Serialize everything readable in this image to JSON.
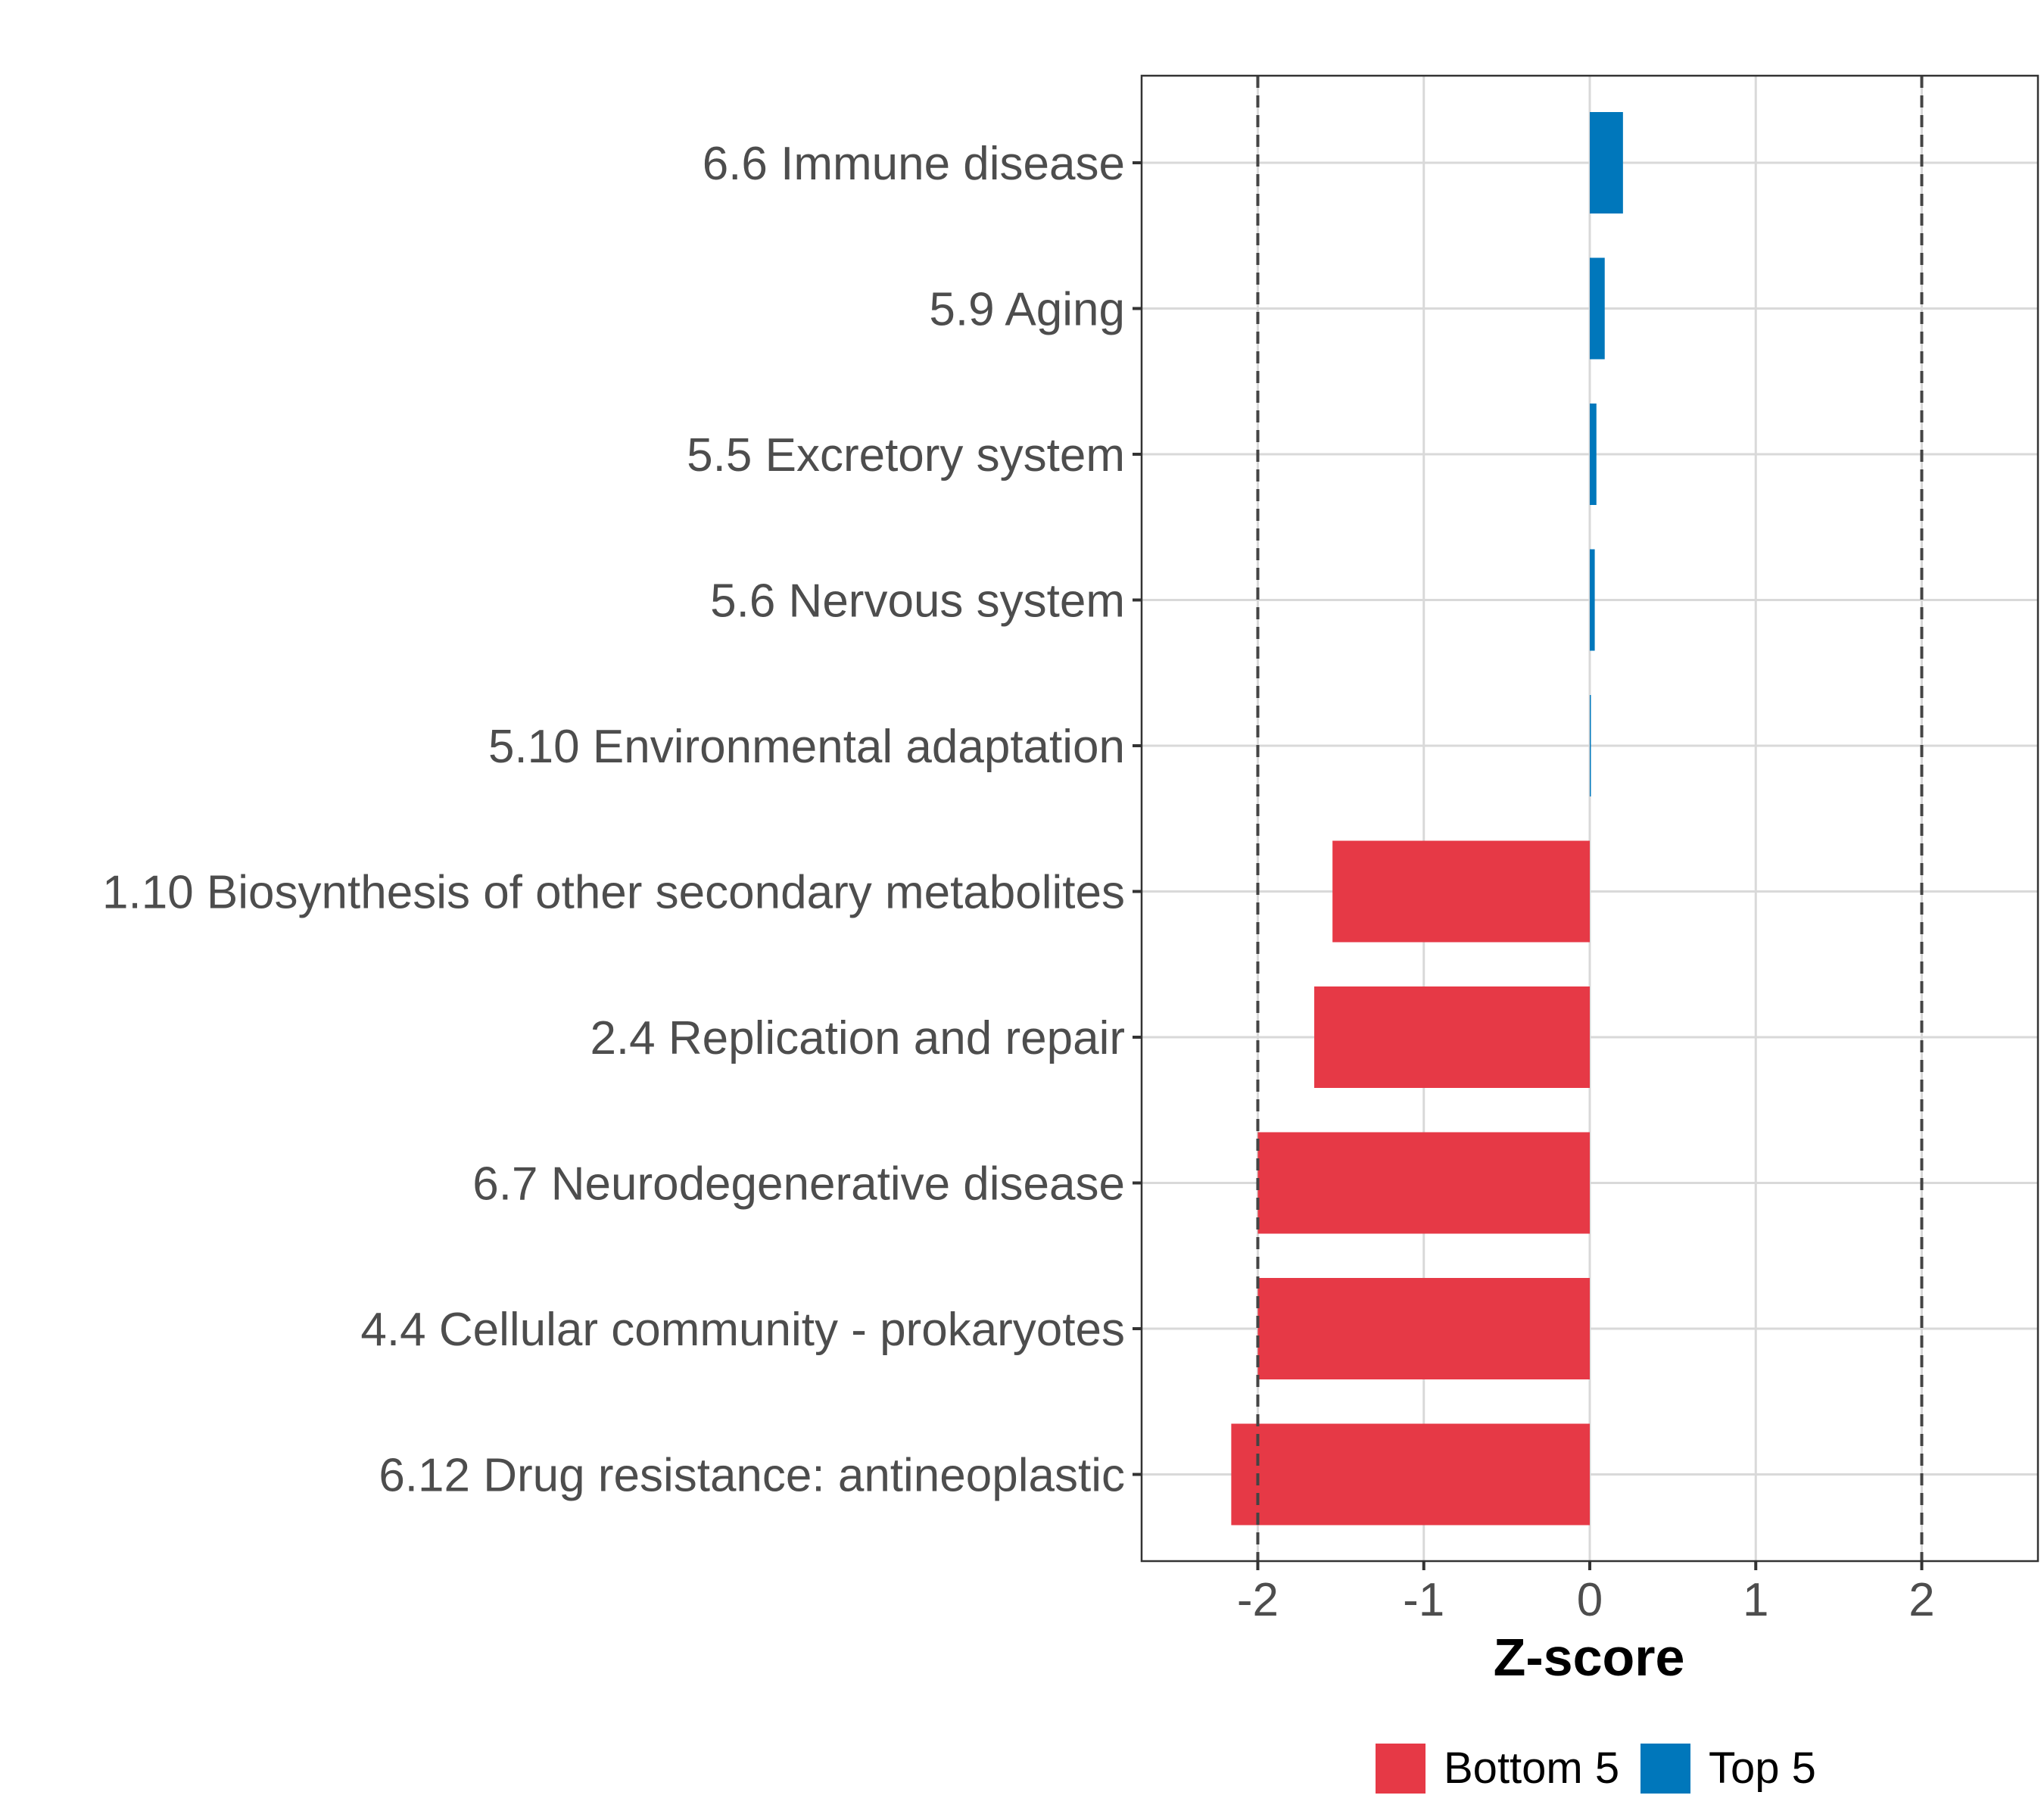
{
  "chart_data": {
    "type": "bar",
    "orientation": "horizontal",
    "categories": [
      "6.6 Immune disease",
      "5.9 Aging",
      "5.5 Excretory system",
      "5.6 Nervous system",
      "5.10 Environmental adaptation",
      "1.10 Biosynthesis of other secondary metabolites",
      "2.4 Replication and repair",
      "6.7 Neurodegenerative disease",
      "4.4 Cellular community - prokaryotes",
      "6.12 Drug resistance: antineoplastic"
    ],
    "values": [
      0.2,
      0.09,
      0.04,
      0.03,
      0.005,
      -1.55,
      -1.66,
      -2.0,
      -2.0,
      -2.16
    ],
    "groups": [
      "Top 5",
      "Top 5",
      "Top 5",
      "Top 5",
      "Top 5",
      "Bottom 5",
      "Bottom 5",
      "Bottom 5",
      "Bottom 5",
      "Bottom 5"
    ],
    "xlabel": "Z-score",
    "ylabel": "",
    "xlim": [
      -2.7,
      2.7
    ],
    "xticks": [
      -2,
      -1,
      0,
      1,
      2
    ],
    "xtick_labels": [
      "-2",
      "-1",
      "0",
      "1",
      "2"
    ],
    "reference_lines": [
      -2,
      2
    ],
    "grid": true,
    "legend": {
      "position": "bottom",
      "items": [
        {
          "label": "Bottom 5",
          "color": "#e63946"
        },
        {
          "label": "Top 5",
          "color": "#0077bb"
        }
      ]
    }
  },
  "colors": {
    "Top 5": "#0077bb",
    "Bottom 5": "#e63946"
  }
}
